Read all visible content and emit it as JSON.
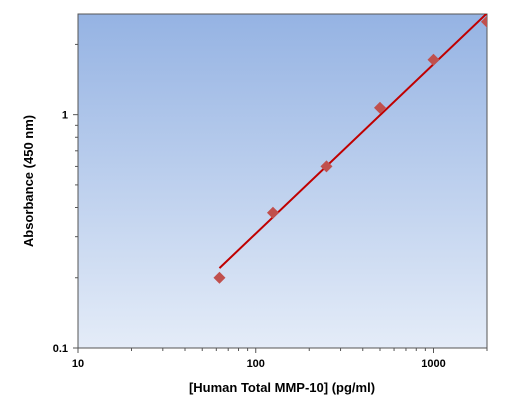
{
  "chart_data": {
    "type": "scatter",
    "title": "",
    "xlabel": "[Human Total MMP-10] (pg/ml)",
    "ylabel": "Absorbance (450 nm)",
    "x_scale": "log",
    "y_scale": "log",
    "xlim": [
      10,
      2000
    ],
    "ylim": [
      0.1,
      2.7
    ],
    "x_ticks": [
      10,
      100,
      1000
    ],
    "x_tick_labels": [
      "10",
      "100",
      "1000"
    ],
    "y_ticks": [
      0.1,
      1
    ],
    "y_tick_labels": [
      "0.1",
      "1"
    ],
    "grid": false,
    "legend": "none",
    "series": [
      {
        "kind": "points",
        "marker": "diamond",
        "x": [
          62.5,
          125,
          250,
          500,
          1000,
          2000
        ],
        "y": [
          0.2,
          0.38,
          0.6,
          1.07,
          1.72,
          2.5
        ]
      },
      {
        "kind": "fit-line",
        "x": [
          62.5,
          2000
        ],
        "y": [
          0.22,
          2.72
        ]
      }
    ],
    "colors": {
      "marker": "#c0504d",
      "line": "#c00000",
      "plot_bg_top": "#95b3e3",
      "plot_bg_bottom": "#e4ecf8"
    }
  }
}
